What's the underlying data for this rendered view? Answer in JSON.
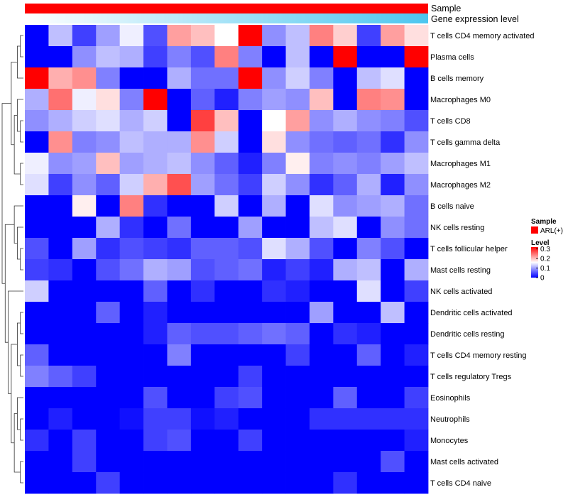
{
  "chart_data": {
    "type": "heatmap",
    "annotations": [
      {
        "label": "Sample",
        "color": "#ff0000"
      },
      {
        "label": "Gene expression level",
        "gradient": [
          "#ffffff",
          "#4cc6ef"
        ]
      }
    ],
    "rows": [
      "T cells CD4 memory activated",
      "Plasma cells",
      "B cells memory",
      "Macrophages M0",
      "T cells CD8",
      "T cells gamma delta",
      "Macrophages M1",
      "Macrophages M2",
      "B cells naive",
      "NK cells resting",
      "T cells follicular helper",
      "Mast cells resting",
      "NK cells activated",
      "Dendritic cells activated",
      "Dendritic cells resting",
      "T cells CD4 memory resting",
      "T cells regulatory  Tregs",
      "Eosinophils",
      "Neutrophils",
      "Monocytes",
      "Mast cells activated",
      "T cells CD4 naive"
    ],
    "values": [
      [
        0.0,
        0.12,
        0.04,
        0.1,
        0.15,
        0.05,
        0.22,
        0.2,
        0.16,
        0.32,
        0.09,
        0.12,
        0.24,
        0.19,
        0.04,
        0.22,
        0.18
      ],
      [
        0.0,
        0.0,
        0.09,
        0.12,
        0.11,
        0.04,
        0.08,
        0.05,
        0.24,
        0.08,
        0.0,
        0.12,
        0.0,
        0.32,
        0.0,
        0.0,
        0.32
      ],
      [
        0.32,
        0.21,
        0.23,
        0.08,
        0.0,
        0.0,
        0.11,
        0.07,
        0.07,
        0.32,
        0.09,
        0.13,
        0.08,
        0.0,
        0.12,
        0.14,
        0.0
      ],
      [
        0.11,
        0.25,
        0.15,
        0.18,
        0.08,
        0.32,
        0.0,
        0.06,
        0.02,
        0.08,
        0.1,
        0.09,
        0.2,
        0.0,
        0.24,
        0.23,
        0.0
      ],
      [
        0.09,
        0.11,
        0.13,
        0.14,
        0.11,
        0.13,
        0.0,
        0.28,
        0.2,
        0.0,
        0.16,
        0.22,
        0.09,
        0.11,
        0.09,
        0.08,
        0.05
      ],
      [
        0.0,
        0.23,
        0.08,
        0.09,
        0.12,
        0.11,
        0.11,
        0.23,
        0.13,
        0.0,
        0.18,
        0.09,
        0.07,
        0.06,
        0.07,
        0.03,
        0.09
      ],
      [
        0.15,
        0.09,
        0.1,
        0.2,
        0.1,
        0.11,
        0.12,
        0.09,
        0.06,
        0.02,
        0.08,
        0.17,
        0.08,
        0.09,
        0.08,
        0.1,
        0.12
      ],
      [
        0.14,
        0.04,
        0.09,
        0.06,
        0.13,
        0.21,
        0.27,
        0.1,
        0.07,
        0.04,
        0.13,
        0.09,
        0.03,
        0.06,
        0.11,
        0.02,
        0.09
      ],
      [
        0.0,
        0.0,
        0.17,
        0.0,
        0.24,
        0.03,
        0.0,
        0.0,
        0.13,
        0.0,
        0.11,
        0.0,
        0.14,
        0.09,
        0.1,
        0.11,
        0.07
      ],
      [
        0.0,
        0.0,
        0.0,
        0.11,
        0.03,
        0.0,
        0.07,
        0.0,
        0.0,
        0.1,
        0.0,
        0.0,
        0.12,
        0.14,
        0.0,
        0.09,
        0.07
      ],
      [
        0.05,
        0.0,
        0.1,
        0.03,
        0.05,
        0.04,
        0.03,
        0.06,
        0.06,
        0.05,
        0.14,
        0.11,
        0.05,
        0.0,
        0.08,
        0.05,
        0.0
      ],
      [
        0.04,
        0.03,
        0.0,
        0.05,
        0.07,
        0.11,
        0.1,
        0.05,
        0.06,
        0.07,
        0.02,
        0.04,
        0.02,
        0.11,
        0.12,
        0.0,
        0.11
      ],
      [
        0.13,
        0.0,
        0.0,
        0.0,
        0.0,
        0.06,
        0.0,
        0.03,
        0.0,
        0.0,
        0.03,
        0.02,
        0.0,
        0.0,
        0.14,
        0.0,
        0.04
      ],
      [
        0.0,
        0.0,
        0.0,
        0.06,
        0.0,
        0.02,
        0.0,
        0.0,
        0.0,
        0.0,
        0.0,
        0.0,
        0.1,
        0.0,
        0.0,
        0.12,
        0.0
      ],
      [
        0.0,
        0.0,
        0.0,
        0.0,
        0.0,
        0.02,
        0.06,
        0.05,
        0.05,
        0.06,
        0.07,
        0.06,
        0.0,
        0.03,
        0.02,
        0.0,
        0.0
      ],
      [
        0.06,
        0.0,
        0.0,
        0.0,
        0.0,
        0.0,
        0.08,
        0.0,
        0.0,
        0.0,
        0.0,
        0.04,
        0.0,
        0.0,
        0.06,
        0.0,
        0.02
      ],
      [
        0.08,
        0.06,
        0.04,
        0.0,
        0.0,
        0.0,
        0.0,
        0.0,
        0.0,
        0.04,
        0.0,
        0.0,
        0.0,
        0.0,
        0.0,
        0.0,
        0.0
      ],
      [
        0.0,
        0.0,
        0.0,
        0.0,
        0.0,
        0.05,
        0.0,
        0.0,
        0.04,
        0.05,
        0.0,
        0.0,
        0.0,
        0.06,
        0.0,
        0.0,
        0.04
      ],
      [
        0.0,
        0.02,
        0.0,
        0.0,
        0.01,
        0.04,
        0.04,
        0.01,
        0.02,
        0.0,
        0.0,
        0.0,
        0.03,
        0.03,
        0.03,
        0.03,
        0.03
      ],
      [
        0.03,
        0.0,
        0.04,
        0.0,
        0.0,
        0.04,
        0.05,
        0.0,
        0.0,
        0.04,
        0.0,
        0.0,
        0.0,
        0.0,
        0.0,
        0.0,
        0.02
      ],
      [
        0.0,
        0.0,
        0.04,
        0.0,
        0.0,
        0.0,
        0.0,
        0.0,
        0.0,
        0.0,
        0.0,
        0.0,
        0.0,
        0.0,
        0.0,
        0.05,
        0.0
      ],
      [
        0.0,
        0.0,
        0.0,
        0.04,
        0.0,
        0.0,
        0.0,
        0.0,
        0.0,
        0.0,
        0.0,
        0.0,
        0.0,
        0.03,
        0.0,
        0.0,
        0.0
      ]
    ],
    "color_scale": {
      "min": 0,
      "max": 0.32,
      "low": "#0000ff",
      "mid": "#ffffff",
      "midpoint": 0.16,
      "high": "#ff0000"
    },
    "legend": {
      "position": "right",
      "sample_title": "Sample",
      "sample_entry": "ARL(+)",
      "level_title": "Level",
      "level_ticks": [
        0.3,
        0.2,
        0.1,
        0
      ],
      "level_tick_labels": [
        "0.3",
        "0.2",
        "0.1",
        "0"
      ]
    },
    "row_dendrogram": true
  }
}
